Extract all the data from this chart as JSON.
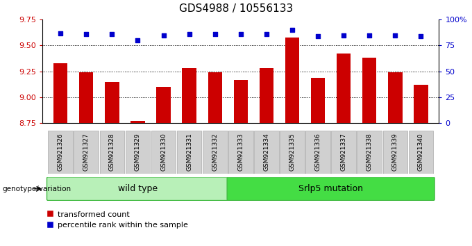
{
  "title": "GDS4988 / 10556133",
  "samples": [
    "GSM921326",
    "GSM921327",
    "GSM921328",
    "GSM921329",
    "GSM921330",
    "GSM921331",
    "GSM921332",
    "GSM921333",
    "GSM921334",
    "GSM921335",
    "GSM921336",
    "GSM921337",
    "GSM921338",
    "GSM921339",
    "GSM921340"
  ],
  "bar_values": [
    9.33,
    9.24,
    9.15,
    8.77,
    9.1,
    9.28,
    9.24,
    9.17,
    9.28,
    9.58,
    9.19,
    9.42,
    9.38,
    9.24,
    9.12
  ],
  "percentile_values": [
    87,
    86,
    86,
    80,
    85,
    86,
    86,
    86,
    86,
    90,
    84,
    85,
    85,
    85,
    84
  ],
  "ylim_left": [
    8.75,
    9.75
  ],
  "ylim_right": [
    0,
    100
  ],
  "yticks_left": [
    8.75,
    9.0,
    9.25,
    9.5,
    9.75
  ],
  "yticks_right": [
    0,
    25,
    50,
    75,
    100
  ],
  "ytick_labels_right": [
    "0",
    "25",
    "50",
    "75",
    "100%"
  ],
  "bar_color": "#cc0000",
  "dot_color": "#0000cc",
  "wild_type_label": "wild type",
  "srlp5_label": "Srlp5 mutation",
  "genotype_label": "genotype/variation",
  "legend_bar_label": "transformed count",
  "legend_dot_label": "percentile rank within the sample",
  "title_fontsize": 11,
  "axis_label_color_left": "#cc0000",
  "axis_label_color_right": "#0000cc",
  "wt_count": 7,
  "sr_count": 8
}
